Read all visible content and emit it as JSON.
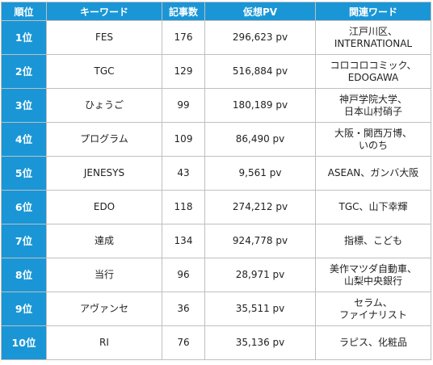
{
  "table": {
    "headers": [
      "順位",
      "キーワード",
      "記事数",
      "仮想PV",
      "関連ワード"
    ],
    "rows": [
      {
        "rank": "1位",
        "keyword": "FES",
        "articles": "176",
        "pv": "296,623 pv",
        "related": [
          "江戸川区、",
          "INTERNATIONAL"
        ]
      },
      {
        "rank": "2位",
        "keyword": "TGC",
        "articles": "129",
        "pv": "516,884 pv",
        "related": [
          "コロコロコミック、",
          "EDOGAWA"
        ]
      },
      {
        "rank": "3位",
        "keyword": "ひょうご",
        "articles": "99",
        "pv": "180,189 pv",
        "related": [
          "神戸学院大学、",
          "日本山村硝子"
        ]
      },
      {
        "rank": "4位",
        "keyword": "プログラム",
        "articles": "109",
        "pv": "86,490 pv",
        "related": [
          "大阪・関西万博、",
          "いのち"
        ]
      },
      {
        "rank": "5位",
        "keyword": "JENESYS",
        "articles": "43",
        "pv": "9,561 pv",
        "related": [
          "ASEAN、ガンバ大阪"
        ]
      },
      {
        "rank": "6位",
        "keyword": "EDO",
        "articles": "118",
        "pv": "274,212 pv",
        "related": [
          "TGC、山下幸輝"
        ]
      },
      {
        "rank": "7位",
        "keyword": "達成",
        "articles": "134",
        "pv": "924,778 pv",
        "related": [
          "指標、こども"
        ]
      },
      {
        "rank": "8位",
        "keyword": "当行",
        "articles": "96",
        "pv": "28,971 pv",
        "related": [
          "美作マツダ自動車、",
          "山梨中央銀行"
        ]
      },
      {
        "rank": "9位",
        "keyword": "アヴァンセ",
        "articles": "36",
        "pv": "35,511 pv",
        "related": [
          "セラム、",
          "ファイナリスト"
        ]
      },
      {
        "rank": "10位",
        "keyword": "RI",
        "articles": "76",
        "pv": "35,136 pv",
        "related": [
          "ラピス、化粧品"
        ]
      }
    ]
  }
}
